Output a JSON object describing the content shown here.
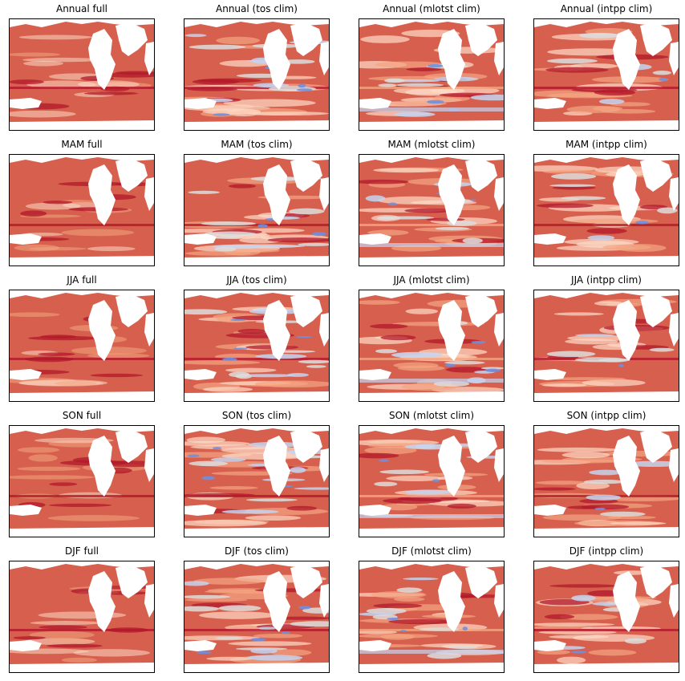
{
  "colors": {
    "ocean_base": "#d6604d",
    "deep_red": "#b2182b",
    "light_red": "#f4a582",
    "pale": "#fddbc7",
    "neutral": "#dddddd",
    "light_blue": "#c6d4f0",
    "blue": "#6f8fe0",
    "land": "#ffffff",
    "frame": "#000000"
  },
  "chart_data": {
    "type": "heatmap",
    "colormap": "coolwarm",
    "colorbar": "none",
    "rows": [
      "Annual",
      "MAM",
      "JJA",
      "SON",
      "DJF"
    ],
    "columns": [
      "full",
      "tos clim",
      "mlotst clim",
      "intpp clim"
    ],
    "panels": [
      {
        "title": "Annual full",
        "row": "Annual",
        "variant": "full"
      },
      {
        "title": "Annual (tos clim)",
        "row": "Annual",
        "variant": "tos clim"
      },
      {
        "title": "Annual (mlotst clim)",
        "row": "Annual",
        "variant": "mlotst clim"
      },
      {
        "title": "Annual (intpp clim)",
        "row": "Annual",
        "variant": "intpp clim"
      },
      {
        "title": "MAM full",
        "row": "MAM",
        "variant": "full"
      },
      {
        "title": "MAM (tos clim)",
        "row": "MAM",
        "variant": "tos clim"
      },
      {
        "title": "MAM (mlotst clim)",
        "row": "MAM",
        "variant": "mlotst clim"
      },
      {
        "title": "MAM (intpp clim)",
        "row": "MAM",
        "variant": "intpp clim"
      },
      {
        "title": "JJA full",
        "row": "JJA",
        "variant": "full"
      },
      {
        "title": "JJA (tos clim)",
        "row": "JJA",
        "variant": "tos clim"
      },
      {
        "title": "JJA (mlotst clim)",
        "row": "JJA",
        "variant": "mlotst clim"
      },
      {
        "title": "JJA (intpp clim)",
        "row": "JJA",
        "variant": "intpp clim"
      },
      {
        "title": "SON full",
        "row": "SON",
        "variant": "full"
      },
      {
        "title": "SON (tos clim)",
        "row": "SON",
        "variant": "tos clim"
      },
      {
        "title": "SON (mlotst clim)",
        "row": "SON",
        "variant": "mlotst clim"
      },
      {
        "title": "SON (intpp clim)",
        "row": "SON",
        "variant": "intpp clim"
      },
      {
        "title": "DJF full",
        "row": "DJF",
        "variant": "full"
      },
      {
        "title": "DJF (tos clim)",
        "row": "DJF",
        "variant": "tos clim"
      },
      {
        "title": "DJF (mlotst clim)",
        "row": "DJF",
        "variant": "mlotst clim"
      },
      {
        "title": "DJF (intpp clim)",
        "row": "DJF",
        "variant": "intpp clim"
      }
    ]
  }
}
